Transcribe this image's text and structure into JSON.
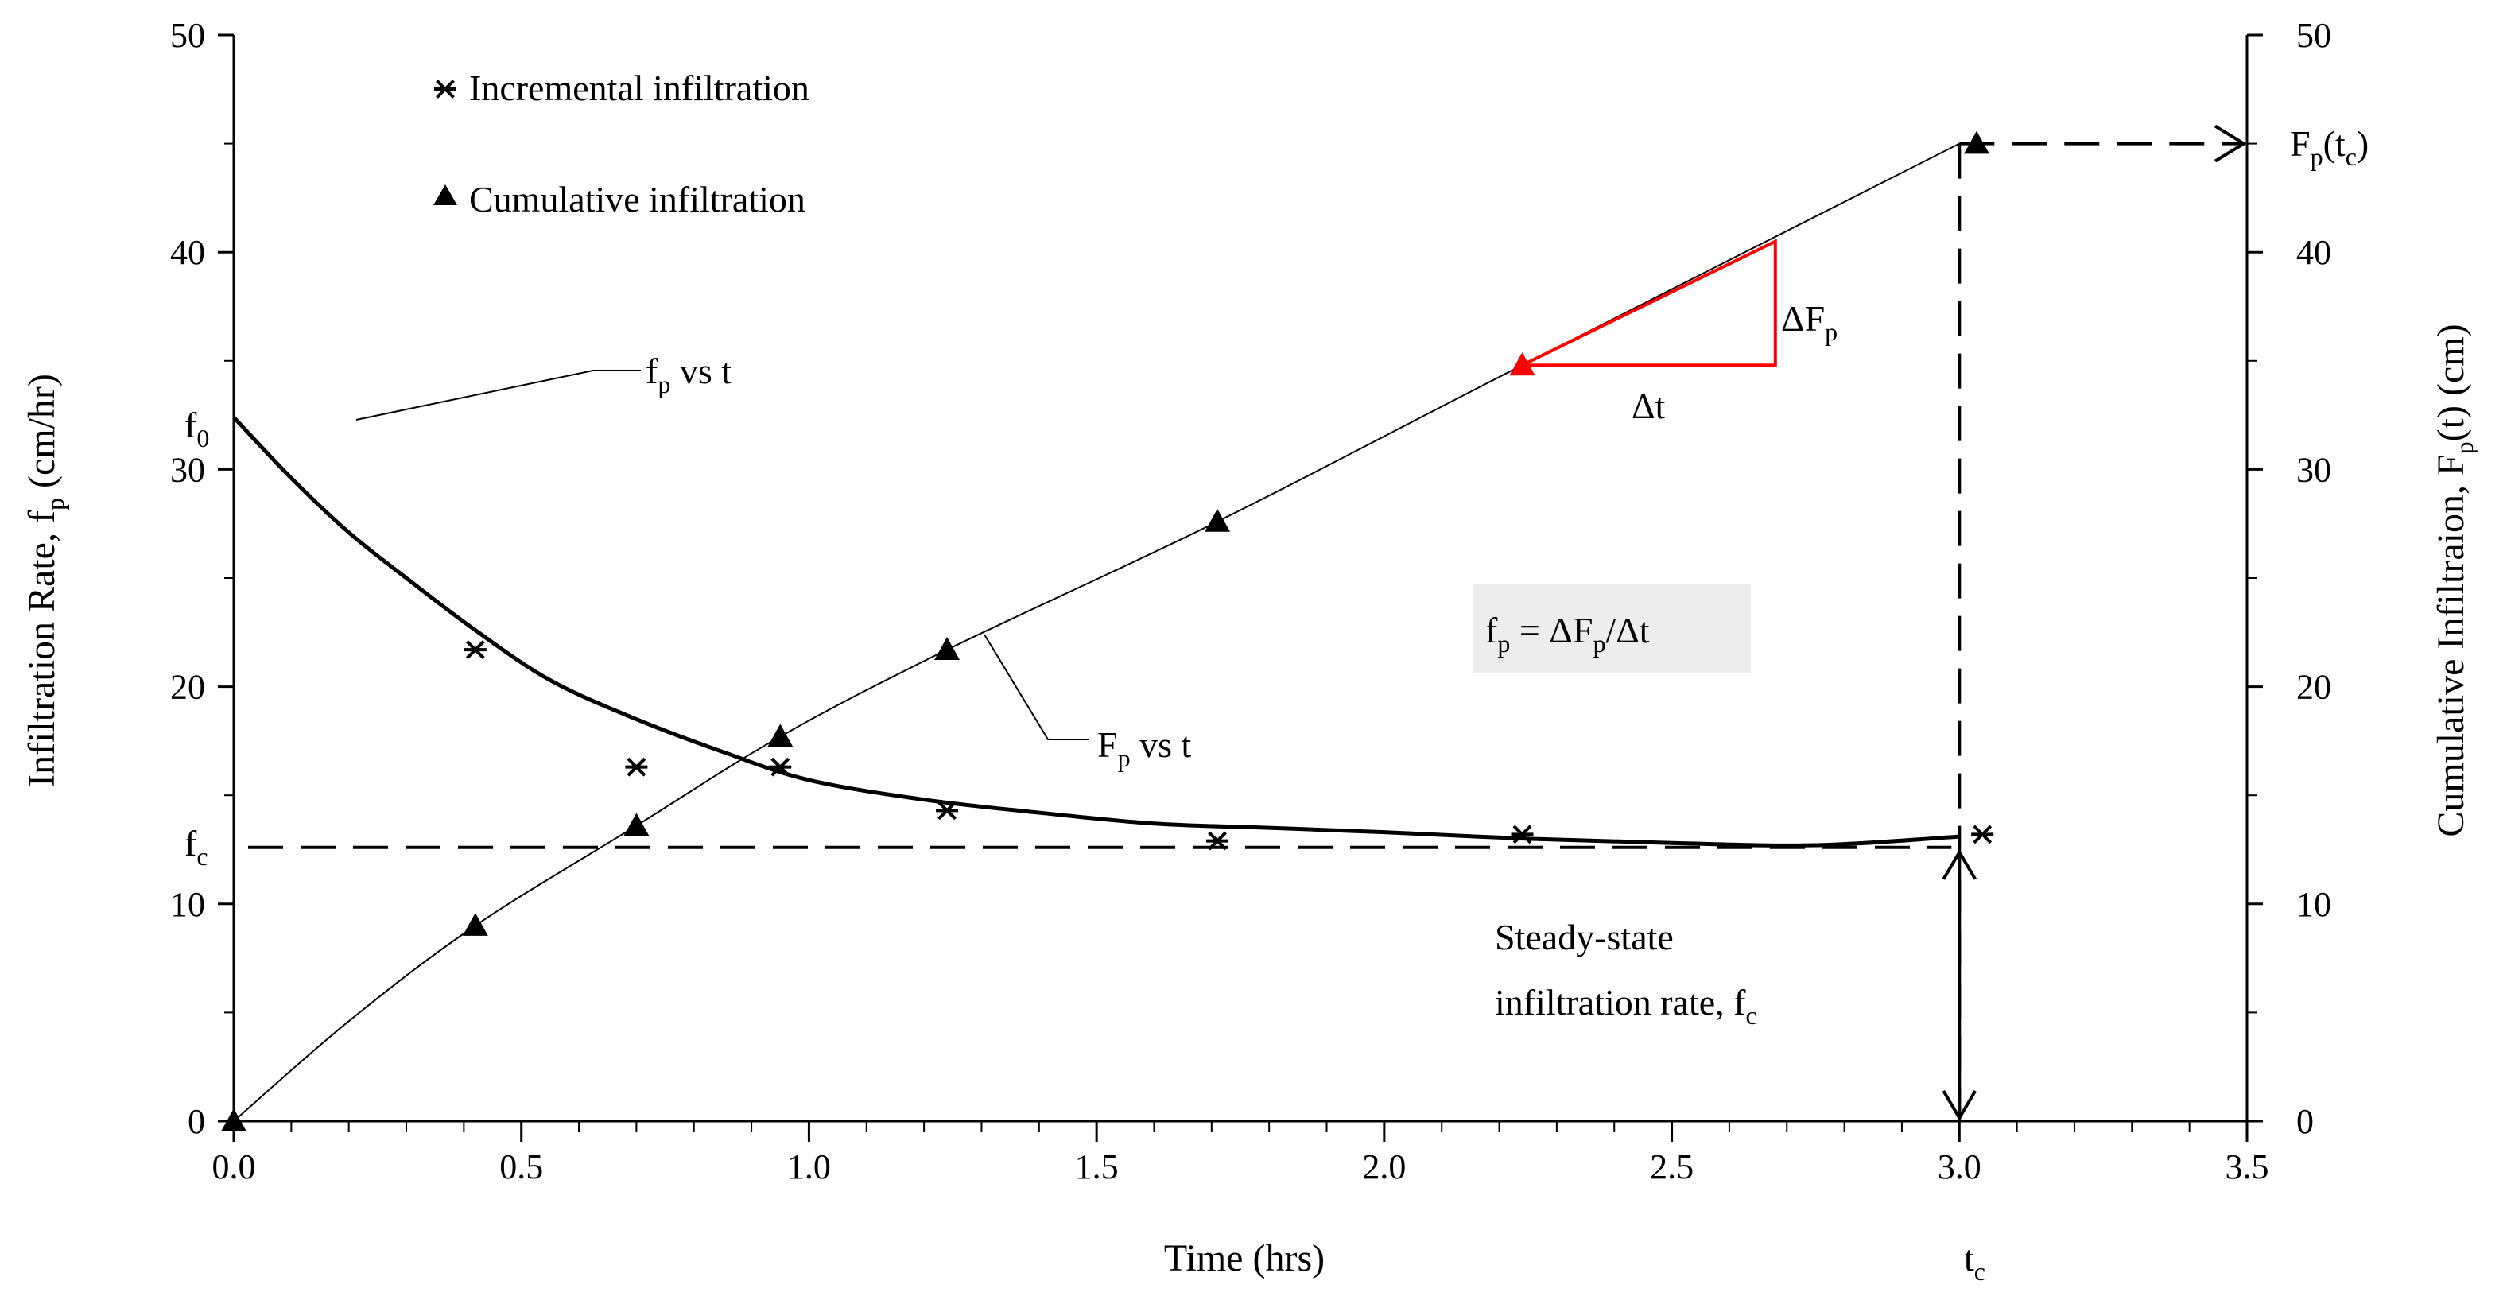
{
  "chart_data": {
    "type": "scatter",
    "xlabel": "Time (hrs)",
    "ylabel_left": {
      "main": "Infiltration Rate, f",
      "sub": "p",
      "tail": " (cm/hr)"
    },
    "ylabel_right": {
      "main": "Cumulative Infiltraion, F",
      "sub": "p",
      "tail": "(t) (cm)"
    },
    "xlim": [
      0,
      3.5
    ],
    "ylim_left": [
      0,
      50
    ],
    "ylim_right": [
      0,
      50
    ],
    "x_ticks": [
      "0.0",
      "0.5",
      "1.0",
      "1.5",
      "2.0",
      "2.5",
      "3.0",
      "3.5"
    ],
    "y_ticks_left": [
      "0",
      "10",
      "20",
      "30",
      "40",
      "50"
    ],
    "y_ticks_right": [
      "0",
      "10",
      "20",
      "30",
      "40",
      "50"
    ],
    "legend": [
      {
        "label": "Incremental infiltration",
        "marker": "asterisk"
      },
      {
        "label": "Cumulative infiltration",
        "marker": "triangle"
      }
    ],
    "series": [
      {
        "name": "Incremental infiltration",
        "marker": "asterisk",
        "axis": "left",
        "x": [
          0.42,
          0.7,
          0.95,
          1.24,
          1.71,
          2.24,
          3.04
        ],
        "y": [
          21.7,
          16.3,
          16.3,
          14.3,
          12.9,
          13.2,
          13.2
        ]
      },
      {
        "name": "Cumulative infiltration",
        "marker": "triangle",
        "axis": "right",
        "x": [
          0.0,
          0.42,
          0.7,
          0.95,
          1.24,
          1.71,
          2.24,
          3.03
        ],
        "y": [
          0.0,
          9.0,
          13.6,
          17.7,
          21.7,
          27.6,
          34.8,
          45.0
        ]
      }
    ],
    "curves": [
      {
        "name": "f_p vs t",
        "axis": "left",
        "x": [
          0.0,
          0.1,
          0.2,
          0.3,
          0.42,
          0.55,
          0.7,
          0.85,
          1.0,
          1.2,
          1.4,
          1.6,
          1.8,
          2.0,
          2.25,
          2.5,
          2.75,
          3.0
        ],
        "y": [
          32.4,
          29.6,
          27.1,
          25.0,
          22.6,
          20.3,
          18.5,
          17.0,
          15.7,
          14.8,
          14.2,
          13.7,
          13.5,
          13.3,
          13.0,
          12.8,
          12.7,
          13.1
        ]
      },
      {
        "name": "F_p vs t",
        "axis": "right",
        "x": [
          0.0,
          0.2,
          0.42,
          0.7,
          0.95,
          1.24,
          1.71,
          2.24,
          3.0
        ],
        "y": [
          0.0,
          4.6,
          9.0,
          13.6,
          17.7,
          21.7,
          27.6,
          34.8,
          45.0
        ]
      }
    ],
    "annotations": {
      "fp_curve_label": {
        "f": "f",
        "sub": "p",
        "tail": " vs t"
      },
      "Fp_curve_label": {
        "f": "F",
        "sub": "p",
        "tail": " vs t"
      },
      "f0": {
        "f": "f",
        "sub": "0"
      },
      "fc": {
        "f": "f",
        "sub": "c"
      },
      "tc": {
        "f": "t",
        "sub": "c"
      },
      "Fp_tc": {
        "a": "F",
        "sub1": "p",
        "b": "(t",
        "sub2": "c",
        "c": ")"
      },
      "delta_Fp": {
        "a": "ΔF",
        "sub": "p"
      },
      "delta_t": "Δt",
      "formula": {
        "a": "f",
        "sub1": "p",
        "b": " = ΔF",
        "sub2": "p",
        "c": "/Δt"
      },
      "steady_state": {
        "line1": "Steady-state",
        "line2": "infiltration  rate, f",
        "sub": "c"
      },
      "fc_value": 12.6,
      "tc_value": 3.0,
      "Fp_tc_value": 45.0,
      "slope_triangle": {
        "x1": 2.24,
        "x2": 2.68,
        "y1": 34.8,
        "y2": 40.5
      }
    },
    "colors": {
      "line": "#000000",
      "triangle": "#ff0000",
      "formula_bg": "#ededed"
    }
  }
}
